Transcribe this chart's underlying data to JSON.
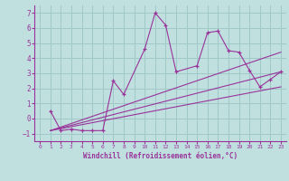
{
  "title": "",
  "xlabel": "Windchill (Refroidissement éolien,°C)",
  "ylabel": "",
  "xlim": [
    -0.5,
    23.5
  ],
  "ylim": [
    -1.5,
    7.5
  ],
  "yticks": [
    -1,
    0,
    1,
    2,
    3,
    4,
    5,
    6,
    7
  ],
  "xticks": [
    0,
    1,
    2,
    3,
    4,
    5,
    6,
    7,
    8,
    9,
    10,
    11,
    12,
    13,
    14,
    15,
    16,
    17,
    18,
    19,
    20,
    21,
    22,
    23
  ],
  "background_color": "#c0e0e0",
  "grid_color": "#a0c8c8",
  "line_color": "#993399",
  "series": [
    {
      "x": [
        1,
        2,
        3,
        4,
        5,
        6,
        7,
        8,
        10,
        11,
        12,
        13,
        15,
        16,
        17,
        18,
        19,
        20,
        21,
        22,
        23
      ],
      "y": [
        0.5,
        -0.8,
        -0.7,
        -0.8,
        -0.8,
        -0.8,
        2.5,
        1.6,
        4.6,
        7.0,
        6.2,
        3.1,
        3.5,
        5.7,
        5.8,
        4.5,
        4.4,
        3.2,
        2.1,
        2.6,
        3.1
      ],
      "marker": "+"
    },
    {
      "x": [
        1,
        23
      ],
      "y": [
        -0.8,
        4.4
      ],
      "marker": null
    },
    {
      "x": [
        1,
        23
      ],
      "y": [
        -0.8,
        3.1
      ],
      "marker": null
    },
    {
      "x": [
        1,
        23
      ],
      "y": [
        -0.8,
        2.1
      ],
      "marker": null
    }
  ]
}
